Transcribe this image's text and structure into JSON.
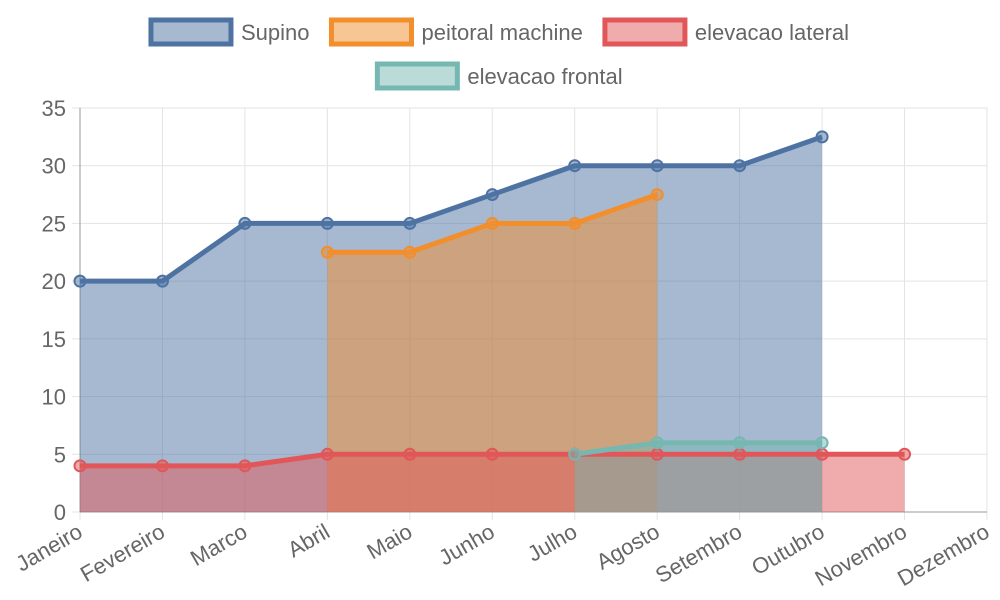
{
  "colors": {
    "grid": "#e3e3e3",
    "axis": "#999999",
    "text": "#666666"
  },
  "chart_data": {
    "type": "area",
    "categories": [
      "Janeiro",
      "Fevereiro",
      "Marco",
      "Abril",
      "Maio",
      "Junho",
      "Julho",
      "Agosto",
      "Setembro",
      "Outubro",
      "Novembro",
      "Dezembro"
    ],
    "ylim": [
      0,
      35
    ],
    "yticks": [
      0,
      5,
      10,
      15,
      20,
      25,
      30,
      35
    ],
    "grid": true,
    "legend_position": "top",
    "series": [
      {
        "name": "Supino",
        "color": "#4e73a3",
        "fill": "rgba(78,115,163,0.5)",
        "values": [
          20,
          20,
          25,
          25,
          25,
          27.5,
          30,
          30,
          30,
          32.5,
          null,
          null
        ]
      },
      {
        "name": "peitoral machine",
        "color": "#f28e2b",
        "fill": "rgba(242,142,43,0.5)",
        "values": [
          null,
          null,
          null,
          22.5,
          22.5,
          25,
          25,
          27.5,
          null,
          null,
          null,
          null
        ]
      },
      {
        "name": "elevacao lateral",
        "color": "#e15759",
        "fill": "rgba(225,87,89,0.5)",
        "values": [
          4,
          4,
          4,
          5,
          5,
          5,
          5,
          5,
          5,
          5,
          5,
          null
        ]
      },
      {
        "name": "elevacao frontal",
        "color": "#76b7b2",
        "fill": "rgba(118,183,178,0.5)",
        "values": [
          null,
          null,
          null,
          null,
          null,
          null,
          5,
          6,
          6,
          6,
          null,
          null
        ]
      }
    ]
  }
}
